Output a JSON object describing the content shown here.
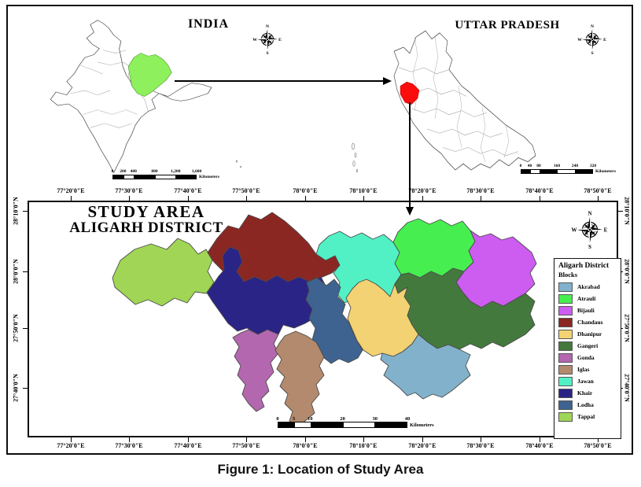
{
  "page": {
    "caption": "Figure 1: Location of Study Area"
  },
  "inset_india": {
    "title": "INDIA",
    "highlight_color": "#8DF05C",
    "scalebar": {
      "labels": [
        "0",
        "200",
        "400",
        "800",
        "1,200",
        "1,600"
      ],
      "unit": "Kilometers"
    }
  },
  "inset_up": {
    "title": "UTTAR PRADESH",
    "highlight_color": "#FB0D0D",
    "scalebar": {
      "labels": [
        "0",
        "40",
        "80",
        "160",
        "240",
        "320"
      ],
      "unit": "Kilometers"
    }
  },
  "study_map": {
    "title_line1": "STUDY AREA",
    "title_line2": "ALIGARH DISTRICT",
    "lon_labels": [
      "77°20'0\"E",
      "77°30'0\"E",
      "77°40'0\"E",
      "77°50'0\"E",
      "78°0'0\"E",
      "78°10'0\"E",
      "78°20'0\"E",
      "78°30'0\"E",
      "78°40'0\"E",
      "78°50'0\"E"
    ],
    "lat_labels": [
      "28°10'0\"N",
      "28°0'0\"N",
      "27°50'0\"N",
      "27°40'0\"N"
    ],
    "scalebar": {
      "labels": [
        "0",
        "5",
        "10",
        "20",
        "30",
        "40"
      ],
      "unit": "Kilometers"
    },
    "legend": {
      "title": "Aligarh District",
      "subtitle": "Blocks",
      "items": [
        {
          "label": "Akrabad",
          "color": "#82B2CB"
        },
        {
          "label": "Atrauli",
          "color": "#46EF4F"
        },
        {
          "label": "Bijauli",
          "color": "#CD5CF0"
        },
        {
          "label": "Chandaus",
          "color": "#8B2723"
        },
        {
          "label": "Dhanipur",
          "color": "#F2D272"
        },
        {
          "label": "Gangeri",
          "color": "#44793D"
        },
        {
          "label": "Gonda",
          "color": "#B367AE"
        },
        {
          "label": "Iglas",
          "color": "#B38A6D"
        },
        {
          "label": "Jawan",
          "color": "#52F1C5"
        },
        {
          "label": "Khair",
          "color": "#2A2486"
        },
        {
          "label": "Lodha",
          "color": "#3E6390"
        },
        {
          "label": "Tappal",
          "color": "#A0D556"
        }
      ]
    }
  },
  "compass": {
    "n": "N",
    "e": "E",
    "s": "S",
    "w": "W"
  }
}
